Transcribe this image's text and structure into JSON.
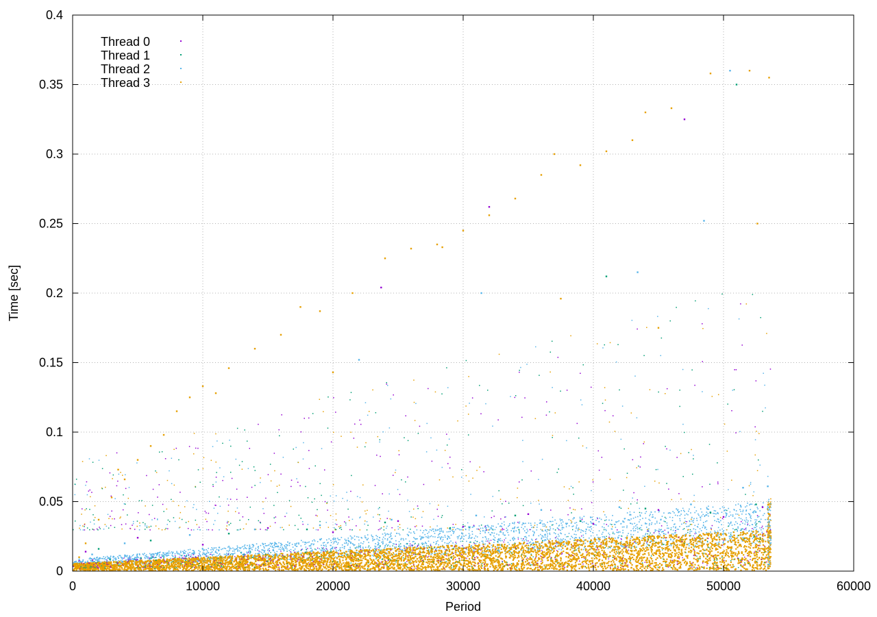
{
  "chart_data": {
    "type": "scatter",
    "title": "",
    "xlabel": "Period",
    "ylabel": "Time [sec]",
    "xlim": [
      0,
      60000
    ],
    "ylim": [
      0,
      0.4
    ],
    "x_ticks": [
      0,
      10000,
      20000,
      30000,
      40000,
      50000,
      60000
    ],
    "x_tick_labels": [
      "0",
      "10000",
      "20000",
      "30000",
      "40000",
      "50000",
      "60000"
    ],
    "y_ticks": [
      0,
      0.05,
      0.1,
      0.15,
      0.2,
      0.25,
      0.3,
      0.35,
      0.4
    ],
    "y_tick_labels": [
      "0",
      "0.05",
      "0.1",
      "0.15",
      "0.2",
      "0.25",
      "0.3",
      "0.35",
      "0.4"
    ],
    "grid": true,
    "legend_position": "top-left",
    "x_range_of_data": [
      0,
      53600
    ],
    "series": [
      {
        "name": "Thread 0",
        "color": "#9400d3",
        "points": [
          [
            1000,
            0.014
          ],
          [
            5000,
            0.024
          ],
          [
            10000,
            0.019
          ],
          [
            15000,
            0.031
          ],
          [
            20000,
            0.028
          ],
          [
            25000,
            0.036
          ],
          [
            30000,
            0.032
          ],
          [
            35000,
            0.041
          ],
          [
            40000,
            0.034
          ],
          [
            45000,
            0.044
          ],
          [
            50000,
            0.039
          ],
          [
            53000,
            0.046
          ],
          [
            23700,
            0.204
          ],
          [
            32000,
            0.262
          ],
          [
            47000,
            0.325
          ]
        ]
      },
      {
        "name": "Thread 1",
        "color": "#009e73",
        "points": [
          [
            2000,
            0.016
          ],
          [
            6000,
            0.022
          ],
          [
            12000,
            0.027
          ],
          [
            18000,
            0.03
          ],
          [
            24000,
            0.035
          ],
          [
            29000,
            0.031
          ],
          [
            34000,
            0.04
          ],
          [
            39000,
            0.036
          ],
          [
            44000,
            0.045
          ],
          [
            49000,
            0.042
          ],
          [
            52500,
            0.048
          ],
          [
            41000,
            0.212
          ],
          [
            51000,
            0.35
          ]
        ]
      },
      {
        "name": "Thread 2",
        "color": "#56b4e9",
        "points": [
          [
            1500,
            0.012
          ],
          [
            4000,
            0.02
          ],
          [
            9000,
            0.026
          ],
          [
            14000,
            0.03
          ],
          [
            19000,
            0.033
          ],
          [
            24500,
            0.037
          ],
          [
            31000,
            0.04
          ],
          [
            36000,
            0.044
          ],
          [
            42000,
            0.046
          ],
          [
            47500,
            0.048
          ],
          [
            51500,
            0.06
          ],
          [
            53400,
            0.061
          ],
          [
            22000,
            0.152
          ],
          [
            31400,
            0.2
          ],
          [
            43400,
            0.215
          ],
          [
            48500,
            0.252
          ],
          [
            50500,
            0.36
          ]
        ]
      },
      {
        "name": "Thread 3",
        "color": "#e69f00",
        "points": [
          [
            500,
            0.01
          ],
          [
            1000,
            0.02
          ],
          [
            2000,
            0.037
          ],
          [
            3000,
            0.053
          ],
          [
            4000,
            0.066
          ],
          [
            5000,
            0.08
          ],
          [
            6000,
            0.09
          ],
          [
            7000,
            0.098
          ],
          [
            8000,
            0.115
          ],
          [
            9000,
            0.125
          ],
          [
            10000,
            0.133
          ],
          [
            12000,
            0.146
          ],
          [
            14000,
            0.16
          ],
          [
            16000,
            0.17
          ],
          [
            17500,
            0.19
          ],
          [
            19000,
            0.187
          ],
          [
            21500,
            0.2
          ],
          [
            24000,
            0.225
          ],
          [
            26000,
            0.232
          ],
          [
            28000,
            0.235
          ],
          [
            30000,
            0.245
          ],
          [
            32000,
            0.256
          ],
          [
            34000,
            0.268
          ],
          [
            36000,
            0.285
          ],
          [
            37000,
            0.3
          ],
          [
            39000,
            0.292
          ],
          [
            41000,
            0.302
          ],
          [
            43000,
            0.31
          ],
          [
            44000,
            0.33
          ],
          [
            46000,
            0.333
          ],
          [
            49000,
            0.358
          ],
          [
            52000,
            0.36
          ],
          [
            53500,
            0.355
          ],
          [
            3500,
            0.073
          ],
          [
            11000,
            0.128
          ],
          [
            20000,
            0.143
          ],
          [
            28400,
            0.233
          ],
          [
            37500,
            0.196
          ],
          [
            45000,
            0.175
          ],
          [
            52600,
            0.25
          ]
        ]
      }
    ]
  }
}
